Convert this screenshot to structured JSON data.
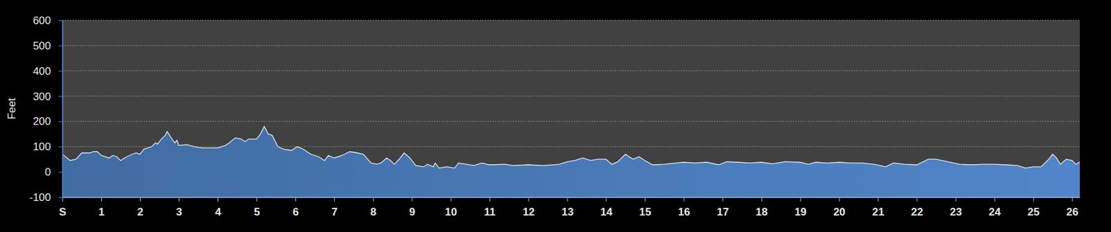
{
  "chart_data": {
    "type": "area",
    "y_label": "Feet",
    "color": "#4a7ab8",
    "grid": true,
    "xlim": [
      0,
      26.2
    ],
    "xticks": [
      {
        "value": 0,
        "label": "S"
      },
      1,
      2,
      3,
      4,
      5,
      6,
      7,
      8,
      9,
      10,
      11,
      12,
      13,
      14,
      15,
      16,
      17,
      18,
      19,
      20,
      21,
      22,
      23,
      24,
      25,
      26
    ],
    "ylim": [
      -100,
      600
    ],
    "yticks": [
      -100,
      0,
      100,
      200,
      300,
      400,
      500,
      600
    ],
    "x": [
      0,
      0.2,
      0.35,
      0.5,
      0.7,
      0.8,
      0.9,
      1.0,
      1.2,
      1.3,
      1.4,
      1.5,
      1.6,
      1.8,
      1.9,
      2.0,
      2.1,
      2.3,
      2.4,
      2.45,
      2.55,
      2.65,
      2.7,
      2.8,
      2.9,
      2.95,
      3.0,
      3.2,
      3.4,
      3.6,
      3.8,
      4.0,
      4.2,
      4.3,
      4.45,
      4.6,
      4.7,
      4.8,
      5.0,
      5.1,
      5.2,
      5.3,
      5.4,
      5.55,
      5.7,
      5.9,
      6.05,
      6.2,
      6.4,
      6.6,
      6.75,
      6.85,
      7.0,
      7.2,
      7.4,
      7.6,
      7.75,
      7.95,
      8.1,
      8.2,
      8.35,
      8.45,
      8.55,
      8.7,
      8.8,
      8.95,
      9.1,
      9.3,
      9.4,
      9.55,
      9.6,
      9.7,
      9.9,
      10.1,
      10.2,
      10.4,
      10.6,
      10.8,
      11.0,
      11.4,
      11.6,
      12.0,
      12.4,
      12.8,
      13.0,
      13.2,
      13.4,
      13.6,
      13.8,
      14.0,
      14.15,
      14.3,
      14.5,
      14.7,
      14.85,
      15.0,
      15.2,
      15.5,
      15.8,
      16.0,
      16.3,
      16.6,
      16.9,
      17.1,
      17.4,
      17.7,
      18.0,
      18.3,
      18.6,
      19.0,
      19.2,
      19.4,
      19.7,
      20.0,
      20.3,
      20.6,
      20.9,
      21.2,
      21.4,
      21.7,
      22.0,
      22.3,
      22.5,
      22.8,
      23.1,
      23.4,
      23.7,
      24.0,
      24.3,
      24.6,
      24.8,
      25.0,
      25.2,
      25.4,
      25.5,
      25.6,
      25.7,
      25.85,
      26.0,
      26.1,
      26.2
    ],
    "values": [
      70,
      45,
      50,
      75,
      75,
      80,
      80,
      65,
      55,
      65,
      60,
      45,
      55,
      70,
      75,
      70,
      90,
      100,
      115,
      110,
      130,
      145,
      160,
      135,
      115,
      125,
      105,
      108,
      100,
      95,
      95,
      95,
      105,
      115,
      135,
      130,
      120,
      130,
      130,
      150,
      180,
      150,
      145,
      100,
      90,
      85,
      100,
      90,
      70,
      60,
      45,
      65,
      55,
      65,
      80,
      75,
      70,
      35,
      30,
      35,
      55,
      45,
      30,
      55,
      75,
      55,
      25,
      20,
      30,
      20,
      35,
      15,
      20,
      15,
      35,
      30,
      25,
      35,
      28,
      30,
      25,
      28,
      25,
      30,
      40,
      45,
      55,
      45,
      50,
      50,
      30,
      40,
      70,
      50,
      60,
      45,
      28,
      30,
      35,
      38,
      35,
      38,
      28,
      40,
      38,
      35,
      38,
      32,
      40,
      38,
      30,
      38,
      35,
      38,
      35,
      35,
      30,
      20,
      35,
      30,
      28,
      50,
      50,
      40,
      30,
      28,
      30,
      30,
      28,
      25,
      15,
      20,
      20,
      50,
      70,
      55,
      30,
      50,
      45,
      30,
      40
    ]
  }
}
